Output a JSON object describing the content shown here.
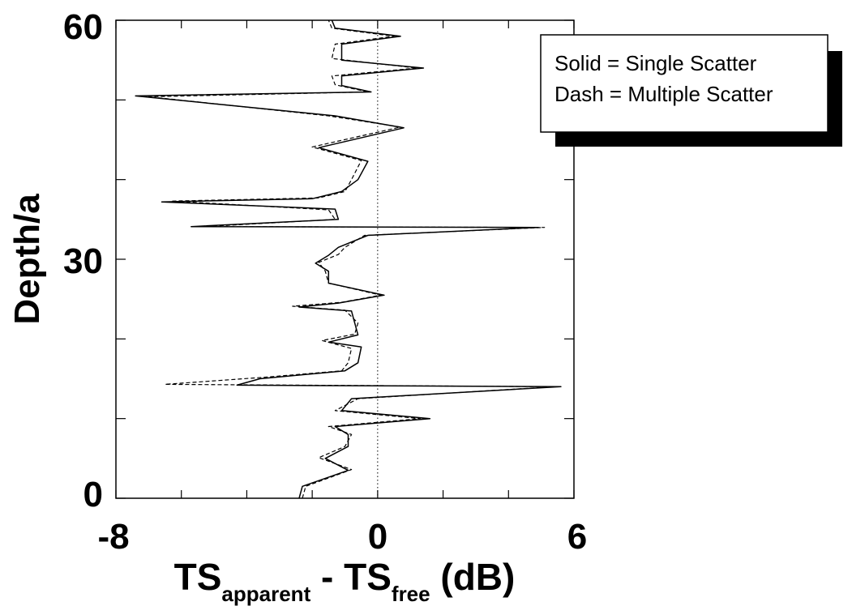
{
  "chart_data": {
    "type": "line",
    "xlabel": {
      "part1": "TS",
      "sub1": "apparent",
      "part2": " - TS",
      "sub2": "free",
      "part3": " (dB)"
    },
    "ylabel": "Depth/a",
    "xlim": [
      -8,
      6
    ],
    "ylim": [
      0,
      60
    ],
    "x_ticks": [
      -8,
      0,
      6
    ],
    "y_ticks": [
      0,
      30,
      60
    ],
    "x_minor_ticks": [
      -6,
      -4,
      -2,
      2,
      4
    ],
    "y_minor_ticks": [
      10,
      20,
      40,
      50
    ],
    "reference_line": {
      "x": 0,
      "style": "dotted"
    },
    "legend": {
      "position": "top-right",
      "lines": [
        "Solid = Single Scatter",
        "Dash = Multiple Scatter"
      ]
    },
    "series": [
      {
        "style": "solid",
        "color": "#000000",
        "points": [
          [
            -2.4,
            0
          ],
          [
            -2.3,
            1.5
          ],
          [
            -1.6,
            2.5
          ],
          [
            -0.9,
            3.5
          ],
          [
            -1.6,
            5
          ],
          [
            -0.9,
            6.5
          ],
          [
            -0.9,
            8
          ],
          [
            -1.3,
            9
          ],
          [
            1.6,
            10
          ],
          [
            -1.1,
            11
          ],
          [
            -0.8,
            12.5
          ],
          [
            5.6,
            14
          ],
          [
            -4.3,
            14.2
          ],
          [
            -3.6,
            15
          ],
          [
            -1.0,
            16
          ],
          [
            -0.6,
            17
          ],
          [
            -0.5,
            19
          ],
          [
            -1.5,
            19.6
          ],
          [
            -0.6,
            20.5
          ],
          [
            -0.7,
            22
          ],
          [
            -0.8,
            23.5
          ],
          [
            -2.4,
            24
          ],
          [
            -1.2,
            24.5
          ],
          [
            0.2,
            25.5
          ],
          [
            -1.5,
            27
          ],
          [
            -1.5,
            28.5
          ],
          [
            -1.9,
            29.5
          ],
          [
            -1.5,
            30.5
          ],
          [
            -1.2,
            31.5
          ],
          [
            -0.3,
            33
          ],
          [
            4.9,
            34
          ],
          [
            -5.7,
            34.1
          ],
          [
            -1.2,
            35
          ],
          [
            -1.3,
            36.3
          ],
          [
            -6.6,
            37.2
          ],
          [
            -2.0,
            37.6
          ],
          [
            -1.1,
            38.5
          ],
          [
            -0.6,
            40
          ],
          [
            -0.3,
            42.3
          ],
          [
            -1.8,
            44
          ],
          [
            0.8,
            46.5
          ],
          [
            -1.3,
            48
          ],
          [
            -7.4,
            50.5
          ],
          [
            -0.2,
            51
          ],
          [
            -1.1,
            51.8
          ],
          [
            -1.1,
            53
          ],
          [
            1.4,
            54
          ],
          [
            -1.1,
            55
          ],
          [
            -1.1,
            57
          ],
          [
            0.7,
            58
          ],
          [
            -1.3,
            59
          ],
          [
            -1.4,
            60
          ]
        ]
      },
      {
        "style": "dashed",
        "color": "#000000",
        "points": [
          [
            -2.3,
            0
          ],
          [
            -2.2,
            1.5
          ],
          [
            -1.4,
            2.7
          ],
          [
            -0.8,
            3.6
          ],
          [
            -1.8,
            5.1
          ],
          [
            -1.0,
            6.5
          ],
          [
            -0.8,
            8
          ],
          [
            -1.5,
            9
          ],
          [
            1.3,
            10
          ],
          [
            -1.3,
            11
          ],
          [
            -0.6,
            12.5
          ],
          [
            5.4,
            14
          ],
          [
            -6.5,
            14.3
          ],
          [
            -3.4,
            15.2
          ],
          [
            -1.1,
            16
          ],
          [
            -0.9,
            17
          ],
          [
            -0.8,
            18.8
          ],
          [
            -1.7,
            19.8
          ],
          [
            -0.7,
            20.6
          ],
          [
            -0.6,
            22
          ],
          [
            -1.0,
            23.6
          ],
          [
            -2.6,
            24.1
          ],
          [
            -1.1,
            24.6
          ],
          [
            0.1,
            25.5
          ],
          [
            -1.5,
            27
          ],
          [
            -1.6,
            28.5
          ],
          [
            -1.8,
            29.6
          ],
          [
            -1.2,
            30.6
          ],
          [
            -1.0,
            31.5
          ],
          [
            -0.4,
            33
          ],
          [
            5.1,
            34
          ],
          [
            -5.3,
            34.1
          ],
          [
            -1.3,
            35
          ],
          [
            -1.5,
            36.2
          ],
          [
            -6.3,
            37.3
          ],
          [
            -1.8,
            37.7
          ],
          [
            -1.0,
            38.5
          ],
          [
            -0.8,
            40
          ],
          [
            -0.5,
            42.4
          ],
          [
            -2.0,
            44.1
          ],
          [
            0.7,
            46.6
          ],
          [
            -1.5,
            48
          ],
          [
            -7.0,
            50.4
          ],
          [
            -0.3,
            51
          ],
          [
            -1.3,
            51.9
          ],
          [
            -1.4,
            53
          ],
          [
            1.2,
            54
          ],
          [
            -1.4,
            55.2
          ],
          [
            -1.3,
            57
          ],
          [
            0.5,
            58
          ],
          [
            -1.4,
            59
          ],
          [
            -1.5,
            60
          ]
        ]
      }
    ]
  }
}
